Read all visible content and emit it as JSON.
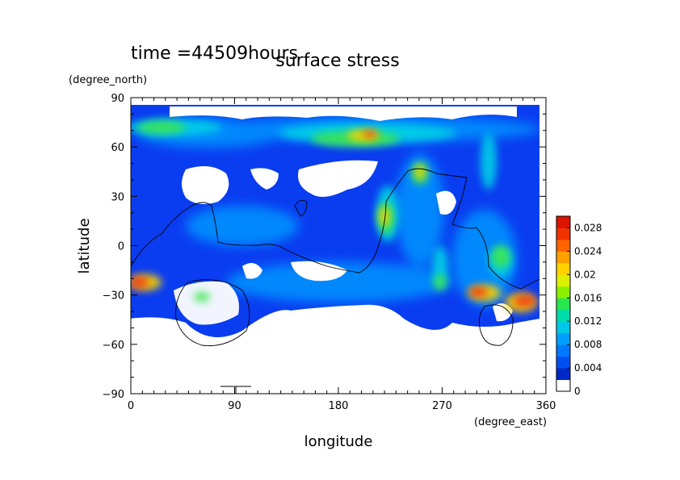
{
  "chart_data": {
    "type": "heatmap",
    "title": "surface stress",
    "time_label": "time =44509hours",
    "xlabel": "longitude",
    "ylabel": "latitude",
    "xunit": "(degree_east)",
    "yunit": "(degree_north)",
    "xlim": [
      0,
      360
    ],
    "ylim": [
      -90,
      90
    ],
    "xticks": [
      "0",
      "90",
      "180",
      "270",
      "360"
    ],
    "yticks": [
      "90",
      "60",
      "30",
      "0",
      "−30",
      "−60",
      "−90"
    ],
    "xtick_values": [
      0,
      90,
      180,
      270,
      360
    ],
    "ytick_values": [
      90,
      60,
      30,
      0,
      -30,
      -60,
      -90
    ],
    "colorbar": {
      "min": 0,
      "max": 0.03,
      "tick_labels": [
        "0",
        "0.004",
        "0.008",
        "0.012",
        "0.016",
        "0.02",
        "0.024",
        "0.028"
      ],
      "tick_values": [
        0,
        0.004,
        0.008,
        0.012,
        0.016,
        0.02,
        0.024,
        0.028
      ],
      "colors": [
        "#ffffff",
        "#0028c8",
        "#0050f0",
        "#0078ff",
        "#00a0ff",
        "#00c8e6",
        "#00dcaa",
        "#28e650",
        "#8cf000",
        "#dcf000",
        "#ffd200",
        "#ffa000",
        "#ff6400",
        "#f03200",
        "#dc1400"
      ]
    },
    "hotspots": [
      {
        "lon": 8,
        "lat": -15,
        "value": 0.024
      },
      {
        "lon": 30,
        "lat": 70,
        "value": 0.016
      },
      {
        "lon": 205,
        "lat": 68,
        "value": 0.022
      },
      {
        "lon": 165,
        "lat": 72,
        "value": 0.016
      },
      {
        "lon": 255,
        "lat": 45,
        "value": 0.022
      },
      {
        "lon": 225,
        "lat": 22,
        "value": 0.018
      },
      {
        "lon": 300,
        "lat": -28,
        "value": 0.026
      },
      {
        "lon": 345,
        "lat": -30,
        "value": 0.026
      },
      {
        "lon": 320,
        "lat": -5,
        "value": 0.016
      },
      {
        "lon": 268,
        "lat": -20,
        "value": 0.014
      },
      {
        "lon": 55,
        "lat": -30,
        "value": 0.014
      },
      {
        "lon": 150,
        "lat": 35,
        "value": 0.01
      }
    ]
  }
}
